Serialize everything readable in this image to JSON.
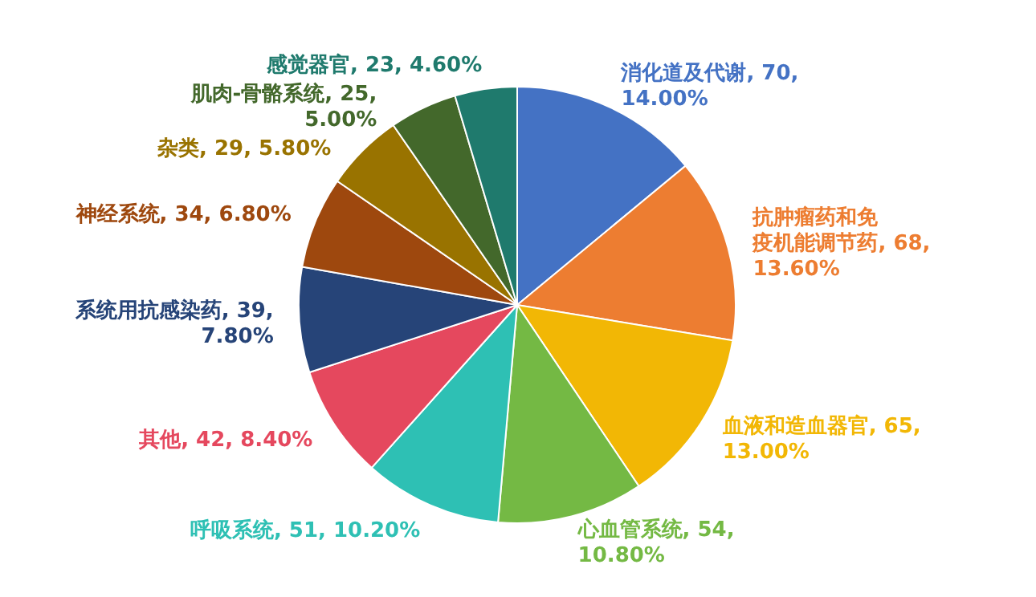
{
  "chart_data": {
    "type": "pie",
    "categories": [
      "消化道及代谢",
      "抗肿瘤药和免疫机能调节药",
      "血液和造血器官",
      "心血管系统",
      "呼吸系统",
      "其他",
      "系统用抗感染药",
      "神经系统",
      "杂类",
      "肌肉-骨骼系统",
      "感觉器官"
    ],
    "values": [
      70,
      68,
      65,
      54,
      51,
      42,
      39,
      34,
      29,
      25,
      23
    ],
    "value_labels": [
      ", 70, 14.00%",
      ", 68, 13.60%",
      ", 65, 13.00%",
      ", 54, 10.80%",
      ", 51, 10.20%",
      ", 42, 8.40%",
      ", 39, 7.80%",
      ", 34, 6.80%",
      ", 29, 5.80%",
      ", 25, 5.00%",
      ", 23, 4.60%"
    ],
    "colors": [
      "#4472c4",
      "#ed7d31",
      "#f2b705",
      "#74b944",
      "#2ec0b4",
      "#e5485e",
      "#264478",
      "#9e480e",
      "#997300",
      "#43682b",
      "#1f7a6d"
    ]
  }
}
